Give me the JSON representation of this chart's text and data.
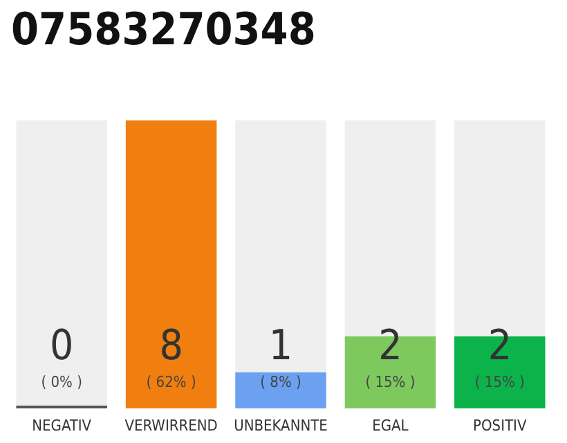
{
  "chart_data": {
    "type": "bar",
    "title": "07583270348",
    "categories": [
      "NEGATIV",
      "VERWIRREND",
      "UNBEKANNTE",
      "EGAL",
      "POSITIV"
    ],
    "stacked": true,
    "series": [
      {
        "colors": [
          "#555555",
          "#f07f0f",
          "#6ba1f0",
          "#7ec95e",
          "#0bb34a"
        ],
        "values": [
          0,
          8,
          1,
          2,
          2
        ],
        "value_labels": [
          "0\n( 0% )",
          "8\n( 62% )",
          "1\n( 8% )",
          "2\n( 15% )",
          "2\n( 15% )"
        ]
      },
      {
        "color": "#efefef",
        "values": [
          8,
          0,
          7,
          6,
          6
        ]
      }
    ],
    "grid": false
  }
}
